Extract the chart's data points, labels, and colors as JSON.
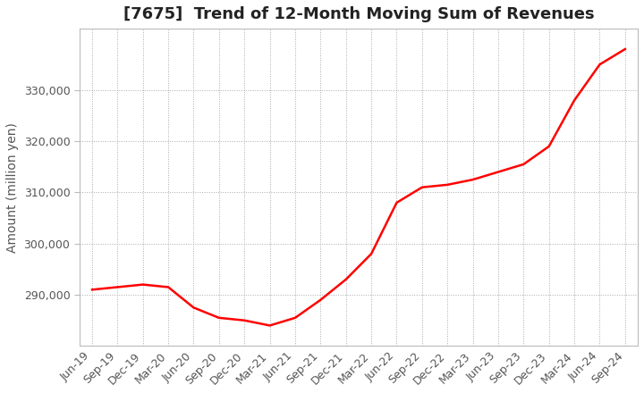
{
  "title": "[7675]  Trend of 12-Month Moving Sum of Revenues",
  "ylabel": "Amount (million yen)",
  "line_color": "#ff0000",
  "background_color": "#ffffff",
  "grid_color": "#aaaaaa",
  "x_labels": [
    "Jun-19",
    "Sep-19",
    "Dec-19",
    "Mar-20",
    "Jun-20",
    "Sep-20",
    "Dec-20",
    "Mar-21",
    "Jun-21",
    "Sep-21",
    "Dec-21",
    "Mar-22",
    "Jun-22",
    "Sep-22",
    "Dec-22",
    "Mar-23",
    "Jun-23",
    "Sep-23",
    "Dec-23",
    "Mar-24",
    "Jun-24",
    "Sep-24"
  ],
  "y_values": [
    291000,
    291500,
    292000,
    291500,
    287500,
    285500,
    285000,
    284000,
    285500,
    289000,
    293000,
    298000,
    308000,
    311000,
    311500,
    312500,
    314000,
    315500,
    319000,
    328000,
    335000,
    338000
  ],
  "ylim_min": 280000,
  "ylim_max": 342000,
  "yticks": [
    290000,
    300000,
    310000,
    320000,
    330000
  ],
  "title_fontsize": 13,
  "axis_label_fontsize": 10,
  "tick_fontsize": 9
}
